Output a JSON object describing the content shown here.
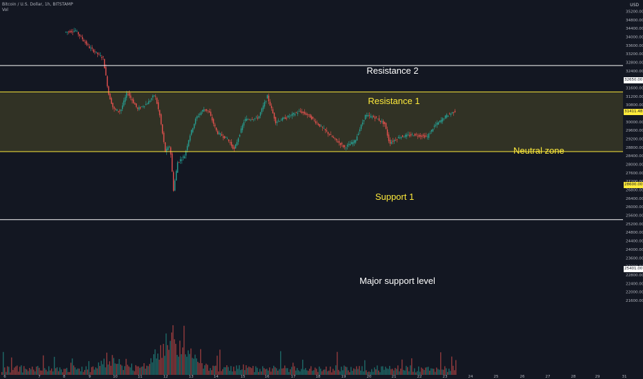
{
  "header": {
    "symbol_line": "Bitcoin / U.S. Dollar, 1h, BITSTAMP",
    "volume_label": "Vol"
  },
  "price_axis": {
    "currency": "USD",
    "ticks": [
      "35200.00",
      "34800.00",
      "34400.00",
      "34000.00",
      "33600.00",
      "33200.00",
      "32800.00",
      "32400.00",
      "32000.00",
      "31600.00",
      "31200.00",
      "30800.00",
      "30400.00",
      "30000.00",
      "29600.00",
      "29200.00",
      "28800.00",
      "28400.00",
      "28000.00",
      "27600.00",
      "27200.00",
      "26800.00",
      "26400.00",
      "26000.00",
      "25600.00",
      "25200.00",
      "24800.00",
      "24400.00",
      "24000.00",
      "23600.00",
      "23200.00",
      "22800.00",
      "22400.00",
      "22000.00",
      "21600.00"
    ]
  },
  "time_axis": {
    "ticks": [
      "6",
      "7",
      "8",
      "9",
      "10",
      "11",
      "12",
      "13",
      "14",
      "15",
      "16",
      "17",
      "18",
      "19",
      "20",
      "21",
      "22",
      "23",
      "24",
      "25",
      "26",
      "27",
      "28",
      "29",
      "31"
    ]
  },
  "levels": {
    "resistance_2": {
      "label": "Resistance 2",
      "price": 32650,
      "tag": "32650.00",
      "color": "#ffffff"
    },
    "resistance_1": {
      "label": "Resistance 1",
      "price": 31411.48,
      "tag": "31411.48",
      "color": "#ffeb3b"
    },
    "support_1": {
      "label": "Support 1",
      "price": 28600,
      "tag": "28600.00",
      "color": "#ffeb3b"
    },
    "major_support": {
      "label": "Major support level",
      "price": 25401,
      "tag": "25401.00",
      "color": "#ffffff"
    }
  },
  "zones": {
    "neutral": {
      "label": "Neutral zone",
      "color": "#ffeb3b"
    }
  },
  "colors": {
    "background": "#131722",
    "up": "#26a69a",
    "down": "#ef5350",
    "text": "#b2b5be",
    "zone_fill": "rgba(255,235,59,0.13)"
  },
  "chart_data": {
    "type": "candlestick",
    "series": [
      {
        "name": "BTCUSD"
      }
    ],
    "x_range": [
      "6",
      "31"
    ],
    "price_range": [
      21400,
      35400
    ],
    "volume_series": {
      "name": "Vol"
    },
    "grid": false,
    "note": "OHLC candles and volume bars approximated from visual trend"
  }
}
